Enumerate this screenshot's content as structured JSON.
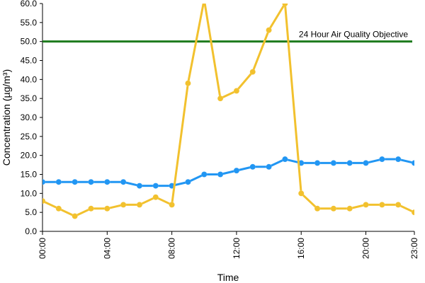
{
  "chart_data": {
    "type": "line",
    "title": "",
    "xlabel": "Time",
    "ylabel": "Concentration (µg/m³)",
    "ylim": [
      0,
      60
    ],
    "grid": false,
    "x_ticks": [
      "00:00",
      "04:00",
      "08:00",
      "12:00",
      "16:00",
      "20:00",
      "23:00"
    ],
    "y_ticks": [
      "0.0",
      "5.0",
      "10.0",
      "15.0",
      "20.0",
      "25.0",
      "30.0",
      "35.0",
      "40.0",
      "45.0",
      "50.0",
      "55.0",
      "60.0"
    ],
    "x": [
      "00:00",
      "01:00",
      "02:00",
      "03:00",
      "04:00",
      "05:00",
      "06:00",
      "07:00",
      "08:00",
      "09:00",
      "10:00",
      "11:00",
      "12:00",
      "13:00",
      "14:00",
      "15:00",
      "16:00",
      "17:00",
      "18:00",
      "19:00",
      "20:00",
      "21:00",
      "22:00",
      "23:00"
    ],
    "series": [
      {
        "color": "#2196f3",
        "values": [
          13,
          13,
          13,
          13,
          13,
          13,
          12,
          12,
          12,
          13,
          15,
          15,
          16,
          17,
          17,
          19,
          18,
          18,
          18,
          18,
          18,
          19,
          19,
          18
        ]
      },
      {
        "color": "#f2c12e",
        "values": [
          8,
          6,
          4,
          6,
          6,
          7,
          7,
          9,
          7,
          39,
          61,
          35,
          37,
          42,
          53,
          60,
          10,
          6,
          6,
          6,
          7,
          7,
          7,
          5
        ]
      }
    ],
    "reference_line": {
      "label": "24 Hour Air Quality Objective",
      "value": 50,
      "color": "#1e7b1e"
    }
  }
}
